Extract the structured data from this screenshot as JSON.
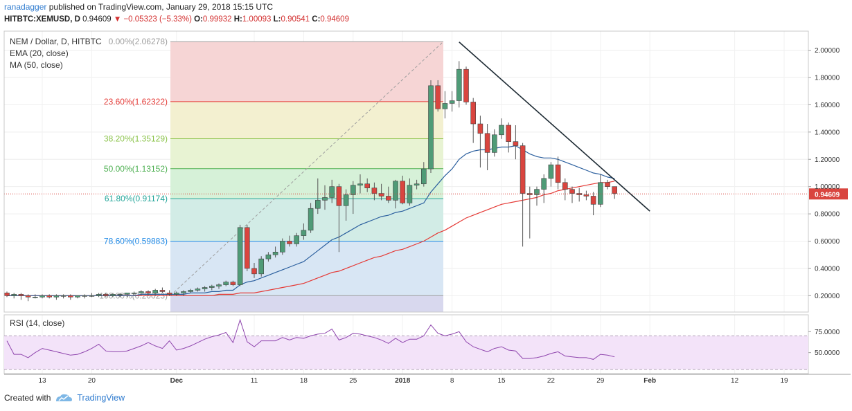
{
  "header": {
    "user": "ranadagger",
    "published": "published on TradingView.com, January 29, 2018 15:15 UTC",
    "symbol": "HITBTC:XEMUSD, D",
    "last": "0.94609",
    "arrow": "▼",
    "change": "−0.05323 (−5.33%)",
    "o_label": "O:",
    "o_val": "0.99932",
    "h_label": "H:",
    "h_val": "1.00093",
    "l_label": "L:",
    "l_val": "0.90541",
    "c_label": "C:",
    "c_val": "0.94609"
  },
  "legend": {
    "title": "NEM / Dollar, D, HITBTC",
    "ema": "EMA (20, close)",
    "ma": "MA (50, close)",
    "rsi": "RSI (14, close)"
  },
  "footer": {
    "created": "Created with",
    "brand": "TradingView"
  },
  "colors": {
    "up": "#4f9b77",
    "down": "#d9453f",
    "ema": "#2b5f9e",
    "ma": "#e53935",
    "trend": "#1d2a33",
    "rsi": "#8e44ad",
    "rsi_band": "#f3e3f9"
  },
  "chart_data": {
    "type": "candlestick",
    "title": "NEM / Dollar, D, HITBTC",
    "price_axis": {
      "ylim": [
        0.08,
        2.14
      ],
      "ticks": [
        "2.00000",
        "1.80000",
        "1.60000",
        "1.40000",
        "1.20000",
        "1.00000",
        "0.80000",
        "0.60000",
        "0.40000",
        "0.20000"
      ],
      "current": "0.94609"
    },
    "x_ticks": [
      "13",
      "20",
      "Dec",
      "11",
      "18",
      "25",
      "2018",
      "8",
      "15",
      "22",
      "29",
      "Feb",
      "12",
      "19"
    ],
    "candles_ohlc": [
      [
        0.22,
        0.23,
        0.19,
        0.2
      ],
      [
        0.2,
        0.22,
        0.18,
        0.21
      ],
      [
        0.21,
        0.22,
        0.17,
        0.2
      ],
      [
        0.2,
        0.21,
        0.16,
        0.19
      ],
      [
        0.19,
        0.21,
        0.18,
        0.19
      ],
      [
        0.19,
        0.21,
        0.18,
        0.2
      ],
      [
        0.2,
        0.21,
        0.18,
        0.19
      ],
      [
        0.19,
        0.21,
        0.17,
        0.2
      ],
      [
        0.2,
        0.21,
        0.18,
        0.2
      ],
      [
        0.2,
        0.21,
        0.17,
        0.19
      ],
      [
        0.19,
        0.2,
        0.18,
        0.2
      ],
      [
        0.2,
        0.21,
        0.18,
        0.2
      ],
      [
        0.2,
        0.22,
        0.19,
        0.2
      ],
      [
        0.2,
        0.22,
        0.19,
        0.21
      ],
      [
        0.21,
        0.22,
        0.19,
        0.2
      ],
      [
        0.2,
        0.22,
        0.19,
        0.21
      ],
      [
        0.21,
        0.22,
        0.19,
        0.21
      ],
      [
        0.21,
        0.22,
        0.19,
        0.22
      ],
      [
        0.22,
        0.23,
        0.2,
        0.22
      ],
      [
        0.22,
        0.24,
        0.2,
        0.23
      ],
      [
        0.23,
        0.24,
        0.2,
        0.22
      ],
      [
        0.22,
        0.25,
        0.2,
        0.24
      ],
      [
        0.24,
        0.26,
        0.22,
        0.23
      ],
      [
        0.22,
        0.24,
        0.2,
        0.21
      ],
      [
        0.21,
        0.23,
        0.2,
        0.22
      ],
      [
        0.22,
        0.24,
        0.2,
        0.23
      ],
      [
        0.23,
        0.25,
        0.22,
        0.24
      ],
      [
        0.24,
        0.26,
        0.23,
        0.25
      ],
      [
        0.25,
        0.27,
        0.23,
        0.26
      ],
      [
        0.26,
        0.28,
        0.24,
        0.27
      ],
      [
        0.27,
        0.29,
        0.25,
        0.28
      ],
      [
        0.28,
        0.31,
        0.27,
        0.3
      ],
      [
        0.3,
        0.31,
        0.27,
        0.28
      ],
      [
        0.28,
        0.72,
        0.27,
        0.7
      ],
      [
        0.7,
        0.72,
        0.38,
        0.4
      ],
      [
        0.4,
        0.44,
        0.33,
        0.36
      ],
      [
        0.36,
        0.49,
        0.34,
        0.47
      ],
      [
        0.47,
        0.52,
        0.45,
        0.5
      ],
      [
        0.5,
        0.56,
        0.48,
        0.52
      ],
      [
        0.52,
        0.62,
        0.5,
        0.6
      ],
      [
        0.6,
        0.64,
        0.56,
        0.58
      ],
      [
        0.58,
        0.66,
        0.56,
        0.64
      ],
      [
        0.64,
        0.73,
        0.61,
        0.68
      ],
      [
        0.68,
        0.88,
        0.66,
        0.84
      ],
      [
        0.84,
        1.06,
        0.8,
        0.9
      ],
      [
        0.9,
        1.01,
        0.83,
        0.92
      ],
      [
        0.92,
        1.05,
        0.88,
        1.0
      ],
      [
        1.0,
        1.02,
        0.52,
        0.86
      ],
      [
        0.86,
        0.98,
        0.75,
        0.94
      ],
      [
        0.94,
        1.04,
        0.8,
        1.01
      ],
      [
        1.01,
        1.09,
        0.95,
        1.02
      ],
      [
        1.02,
        1.06,
        0.96,
        0.99
      ],
      [
        0.99,
        1.03,
        0.9,
        0.95
      ],
      [
        0.95,
        1.02,
        0.9,
        0.93
      ],
      [
        0.93,
        1.0,
        0.88,
        0.9
      ],
      [
        0.9,
        1.05,
        0.84,
        1.04
      ],
      [
        1.04,
        1.08,
        0.87,
        0.88
      ],
      [
        0.88,
        1.06,
        0.86,
        1.01
      ],
      [
        1.01,
        1.05,
        0.98,
        1.02
      ],
      [
        1.02,
        1.18,
        1.0,
        1.13
      ],
      [
        1.13,
        1.78,
        1.1,
        1.74
      ],
      [
        1.74,
        1.78,
        1.55,
        1.57
      ],
      [
        1.57,
        1.7,
        1.5,
        1.61
      ],
      [
        1.61,
        1.7,
        1.55,
        1.63
      ],
      [
        1.63,
        1.92,
        1.58,
        1.86
      ],
      [
        1.86,
        1.88,
        1.6,
        1.62
      ],
      [
        1.62,
        1.65,
        1.32,
        1.46
      ],
      [
        1.46,
        1.52,
        1.14,
        1.39
      ],
      [
        1.39,
        1.46,
        1.12,
        1.25
      ],
      [
        1.25,
        1.42,
        1.22,
        1.38
      ],
      [
        1.38,
        1.5,
        1.35,
        1.45
      ],
      [
        1.45,
        1.47,
        1.25,
        1.33
      ],
      [
        1.33,
        1.45,
        1.2,
        1.3
      ],
      [
        1.3,
        1.32,
        0.56,
        0.95
      ],
      [
        0.95,
        1.0,
        0.62,
        0.94
      ],
      [
        0.94,
        1.0,
        0.86,
        0.98
      ],
      [
        0.98,
        1.09,
        0.88,
        1.06
      ],
      [
        1.06,
        1.18,
        1.0,
        1.16
      ],
      [
        1.16,
        1.22,
        0.98,
        1.03
      ],
      [
        1.03,
        1.06,
        0.9,
        0.98
      ],
      [
        0.98,
        1.0,
        0.88,
        0.95
      ],
      [
        0.95,
        0.99,
        0.89,
        0.94
      ],
      [
        0.94,
        0.97,
        0.9,
        0.93
      ],
      [
        0.93,
        0.96,
        0.79,
        0.87
      ],
      [
        0.87,
        1.09,
        0.85,
        1.03
      ],
      [
        1.03,
        1.05,
        0.98,
        1.0
      ],
      [
        1.0,
        1.0,
        0.91,
        0.95
      ]
    ],
    "ema_20": [
      0.2,
      0.2,
      0.2,
      0.2,
      0.2,
      0.2,
      0.2,
      0.2,
      0.2,
      0.2,
      0.2,
      0.2,
      0.2,
      0.2,
      0.2,
      0.2,
      0.2,
      0.2,
      0.2,
      0.21,
      0.21,
      0.21,
      0.21,
      0.21,
      0.21,
      0.21,
      0.22,
      0.22,
      0.22,
      0.23,
      0.23,
      0.24,
      0.24,
      0.28,
      0.3,
      0.31,
      0.33,
      0.35,
      0.37,
      0.39,
      0.41,
      0.43,
      0.45,
      0.49,
      0.53,
      0.57,
      0.61,
      0.63,
      0.66,
      0.69,
      0.72,
      0.74,
      0.76,
      0.78,
      0.79,
      0.81,
      0.82,
      0.84,
      0.86,
      0.88,
      0.96,
      1.02,
      1.08,
      1.13,
      1.2,
      1.24,
      1.26,
      1.27,
      1.27,
      1.28,
      1.29,
      1.29,
      1.3,
      1.27,
      1.24,
      1.22,
      1.21,
      1.21,
      1.2,
      1.18,
      1.16,
      1.14,
      1.12,
      1.1,
      1.09,
      1.07,
      1.06
    ],
    "ma_50": [
      0.2,
      0.2,
      0.2,
      0.2,
      0.2,
      0.2,
      0.2,
      0.2,
      0.2,
      0.2,
      0.2,
      0.2,
      0.2,
      0.2,
      0.2,
      0.2,
      0.2,
      0.2,
      0.2,
      0.2,
      0.2,
      0.2,
      0.2,
      0.2,
      0.2,
      0.2,
      0.2,
      0.2,
      0.2,
      0.2,
      0.21,
      0.21,
      0.21,
      0.22,
      0.22,
      0.22,
      0.23,
      0.24,
      0.25,
      0.26,
      0.27,
      0.28,
      0.29,
      0.31,
      0.33,
      0.35,
      0.37,
      0.38,
      0.4,
      0.42,
      0.44,
      0.46,
      0.48,
      0.49,
      0.51,
      0.53,
      0.54,
      0.56,
      0.58,
      0.6,
      0.63,
      0.66,
      0.68,
      0.71,
      0.74,
      0.77,
      0.79,
      0.81,
      0.83,
      0.85,
      0.87,
      0.88,
      0.89,
      0.9,
      0.91,
      0.92,
      0.94,
      0.95,
      0.97,
      0.98,
      0.99,
      1.0,
      1.01,
      1.02,
      1.03,
      1.03,
      1.04
    ],
    "fib_levels": [
      {
        "label": "0.00%(2.06278)",
        "value": 2.06278,
        "color": "#9e9e9e"
      },
      {
        "label": "23.60%(1.62322)",
        "value": 1.62322,
        "color": "#e53935"
      },
      {
        "label": "38.20%(1.35129)",
        "value": 1.35129,
        "color": "#8bc34a"
      },
      {
        "label": "50.00%(1.13152)",
        "value": 1.13152,
        "color": "#4caf50"
      },
      {
        "label": "61.80%(0.91174)",
        "value": 0.91174,
        "color": "#26a69a"
      },
      {
        "label": "78.60%(0.59883)",
        "value": 0.59883,
        "color": "#1e88e5"
      },
      {
        "label": "100.00%(0.20023)",
        "value": 0.20023,
        "color": "#9e9e9e"
      }
    ],
    "trendline": [
      [
        64,
        2.06
      ],
      [
        91,
        0.82
      ]
    ],
    "rsi": {
      "ticks": [
        "75.0000",
        "50.0000"
      ],
      "ylim": [
        25,
        95
      ],
      "band": [
        30,
        70
      ],
      "values": [
        64,
        48,
        48,
        44,
        50,
        55,
        53,
        51,
        49,
        47,
        48,
        51,
        55,
        60,
        52,
        51,
        51,
        52,
        55,
        58,
        62,
        58,
        55,
        64,
        53,
        55,
        58,
        62,
        66,
        69,
        71,
        74,
        62,
        89,
        63,
        57,
        64,
        64,
        64,
        68,
        65,
        68,
        67,
        70,
        72,
        73,
        78,
        65,
        68,
        73,
        72,
        70,
        68,
        65,
        61,
        67,
        62,
        66,
        66,
        70,
        83,
        73,
        70,
        72,
        75,
        63,
        57,
        54,
        51,
        55,
        57,
        53,
        52,
        43,
        43,
        44,
        46,
        49,
        51,
        46,
        45,
        44,
        44,
        42,
        48,
        47,
        45
      ]
    }
  }
}
